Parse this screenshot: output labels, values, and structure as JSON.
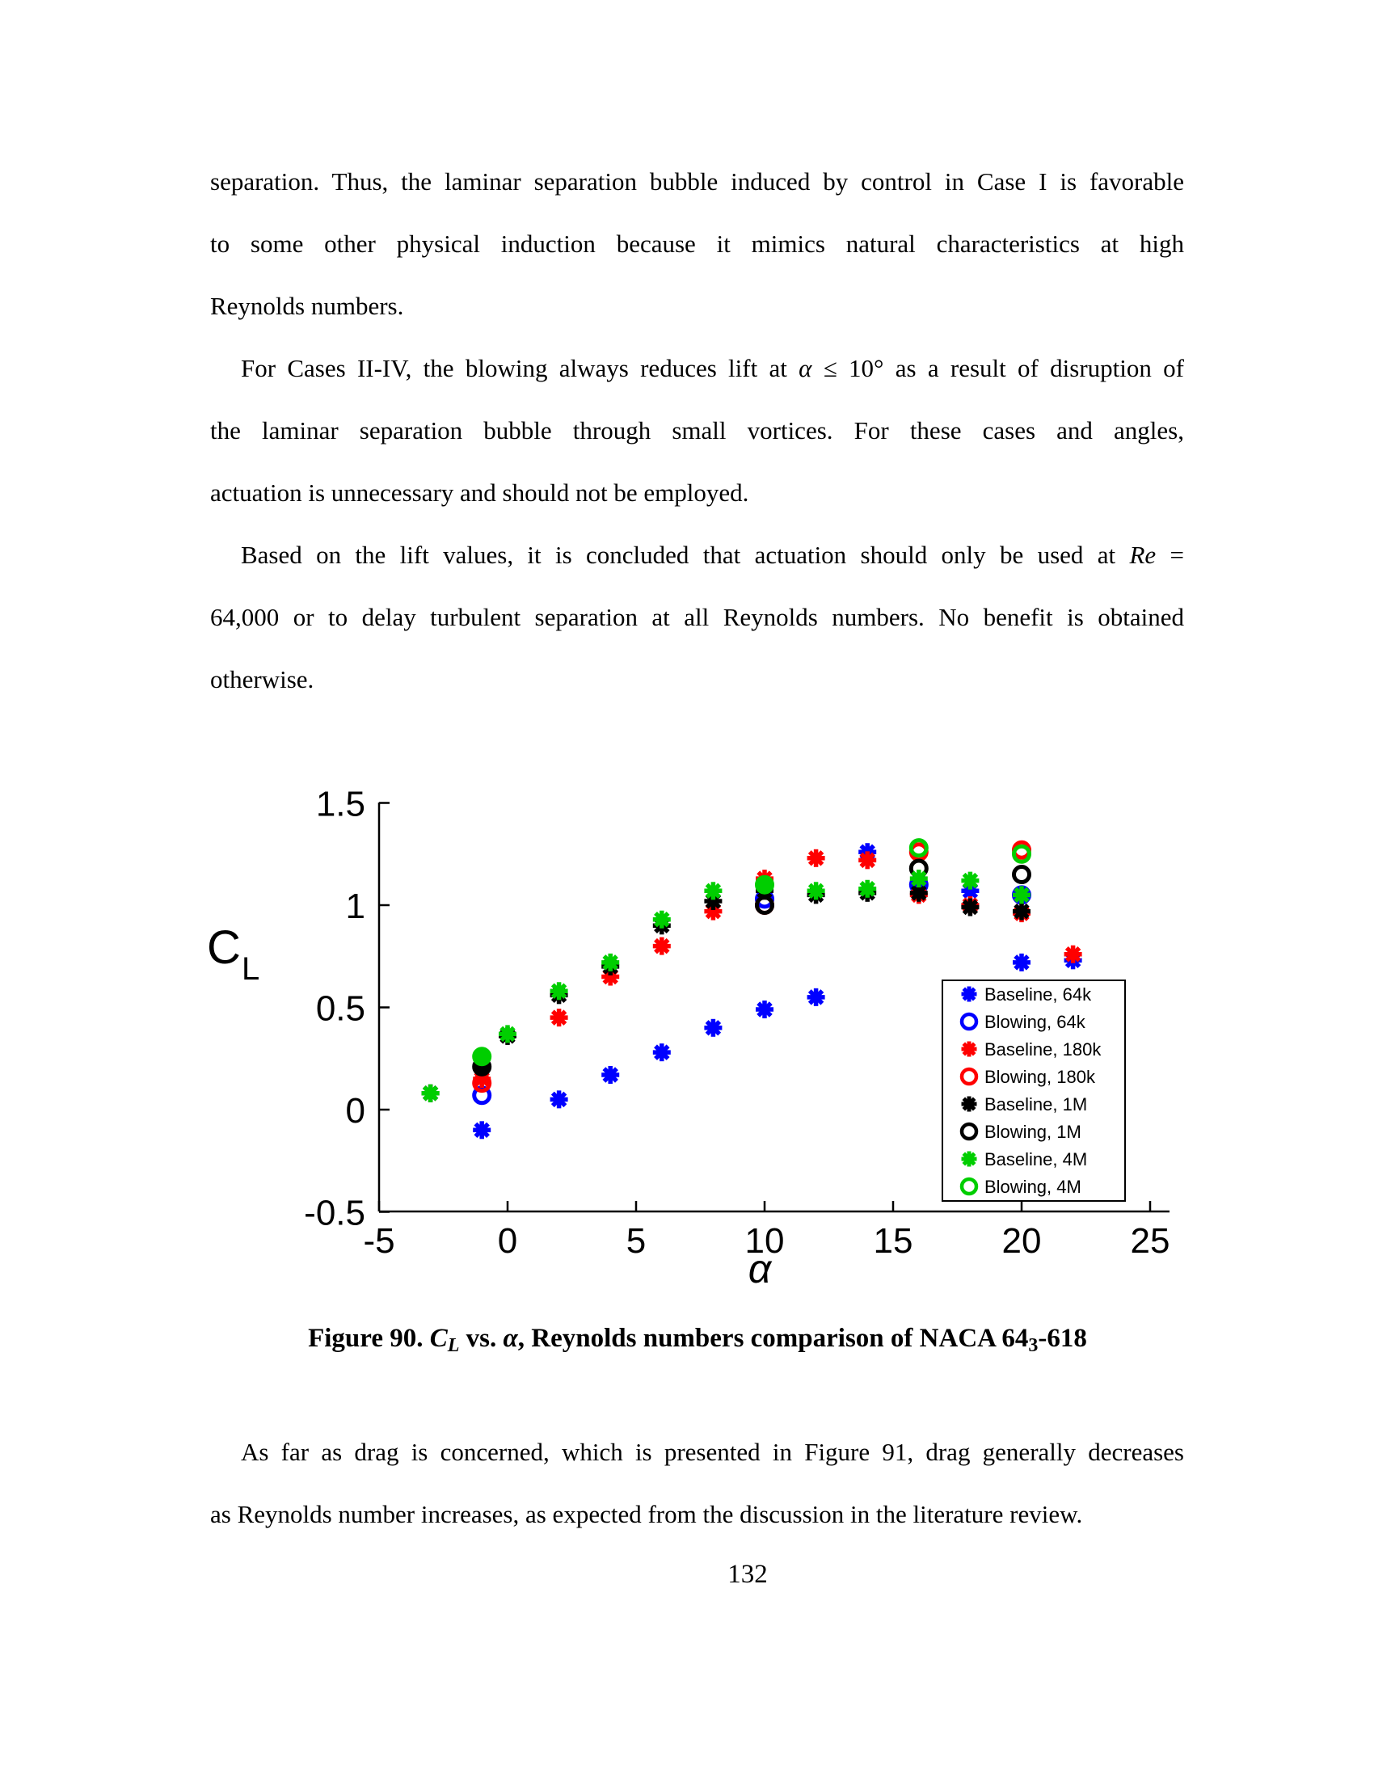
{
  "doc": {
    "p1l1": "separation.  Thus, the laminar separation bubble induced by control in Case I is favorable",
    "p1l2": "to some other physical induction because it mimics natural characteristics at high",
    "p1l3": "Reynolds numbers.",
    "p2l1a": "For Cases II-IV, the blowing always reduces lift at ",
    "p2l1b": "α",
    "p2l1c": " ≤ 10° as a result of disruption of",
    "p2l2": "the laminar separation bubble through small vortices.  For these cases and angles,",
    "p2l3": "actuation is unnecessary and should not be employed.",
    "p3l1a": "Based on the lift values, it is concluded that actuation should only be used at ",
    "p3l1b": "Re",
    "p3l1c": " =",
    "p3l2": "64,000 or to delay turbulent separation at all Reynolds numbers.  No benefit is obtained",
    "p3l3": "otherwise.",
    "p4l1": "As far as drag is concerned, which is presented in Figure 91, drag generally decreases",
    "p4l2": "as Reynolds number increases, as expected from the discussion in the literature review."
  },
  "caption": {
    "prefix": "Figure 90. ",
    "cl_main": "C",
    "cl_sub": "L",
    "mid": " vs. ",
    "alpha": "α",
    "tail_a": ", Reynolds numbers comparison of NACA 64",
    "tail_sub": "3",
    "tail_b": "-618"
  },
  "page": {
    "number": "132"
  },
  "chart_data": {
    "type": "scatter",
    "title": "",
    "xlabel": "α",
    "ylabel_main": "C",
    "ylabel_sub": "L",
    "xlim": [
      -5,
      25
    ],
    "ylim": [
      -0.5,
      1.5
    ],
    "xticks": [
      -5,
      0,
      5,
      10,
      15,
      20,
      25
    ],
    "yticks": [
      -0.5,
      0,
      0.5,
      1,
      1.5
    ],
    "grid": false,
    "legend_position": "lower-right-inside",
    "axis_color": "#000000",
    "series": [
      {
        "name": "Baseline, 64k",
        "marker": "star",
        "color": "#0000FF",
        "points": [
          [
            -1,
            -0.1
          ],
          [
            2,
            0.05
          ],
          [
            4,
            0.17
          ],
          [
            6,
            0.28
          ],
          [
            8,
            0.4
          ],
          [
            10,
            0.49
          ],
          [
            12,
            0.55
          ],
          [
            14,
            1.26
          ],
          [
            16,
            1.11
          ],
          [
            18,
            1.07
          ],
          [
            20,
            0.72
          ],
          [
            22,
            0.73
          ]
        ]
      },
      {
        "name": "Blowing, 64k",
        "marker": "circle",
        "color": "#0000FF",
        "points": [
          [
            -1,
            0.07
          ],
          [
            10,
            1.03
          ],
          [
            16,
            1.1
          ],
          [
            20,
            1.05
          ]
        ]
      },
      {
        "name": "Baseline, 180k",
        "marker": "star",
        "color": "#FF0000",
        "points": [
          [
            -1,
            0.15
          ],
          [
            2,
            0.45
          ],
          [
            4,
            0.65
          ],
          [
            6,
            0.8
          ],
          [
            8,
            0.97
          ],
          [
            10,
            1.13
          ],
          [
            12,
            1.23
          ],
          [
            14,
            1.22
          ],
          [
            16,
            1.05
          ],
          [
            18,
            1.0
          ],
          [
            20,
            0.96
          ],
          [
            22,
            0.76
          ]
        ]
      },
      {
        "name": "Blowing, 180k",
        "marker": "circle",
        "color": "#FF0000",
        "points": [
          [
            -1,
            0.13
          ],
          [
            10,
            1.0
          ],
          [
            16,
            1.26
          ],
          [
            20,
            1.27
          ]
        ]
      },
      {
        "name": "Baseline, 1M",
        "marker": "star",
        "color": "#000000",
        "points": [
          [
            -3,
            0.08
          ],
          [
            -1,
            0.21
          ],
          [
            0,
            0.36
          ],
          [
            2,
            0.56
          ],
          [
            4,
            0.7
          ],
          [
            6,
            0.9
          ],
          [
            8,
            1.02
          ],
          [
            10,
            1.07
          ],
          [
            12,
            1.05
          ],
          [
            14,
            1.06
          ],
          [
            16,
            1.06
          ],
          [
            18,
            0.99
          ],
          [
            20,
            0.97
          ]
        ]
      },
      {
        "name": "Blowing, 1M",
        "marker": "circle",
        "color": "#000000",
        "points": [
          [
            -1,
            0.21
          ],
          [
            10,
            1.0
          ],
          [
            16,
            1.18
          ],
          [
            20,
            1.15
          ]
        ]
      },
      {
        "name": "Baseline, 4M",
        "marker": "star",
        "color": "#00CE00",
        "points": [
          [
            -3,
            0.08
          ],
          [
            -1,
            0.26
          ],
          [
            0,
            0.37
          ],
          [
            2,
            0.58
          ],
          [
            4,
            0.72
          ],
          [
            6,
            0.93
          ],
          [
            8,
            1.07
          ],
          [
            10,
            1.1
          ],
          [
            12,
            1.07
          ],
          [
            14,
            1.08
          ],
          [
            16,
            1.13
          ],
          [
            18,
            1.12
          ],
          [
            20,
            1.05
          ]
        ]
      },
      {
        "name": "Blowing, 4M",
        "marker": "circle",
        "color": "#00CE00",
        "points": [
          [
            -1,
            0.26
          ],
          [
            10,
            1.1
          ],
          [
            16,
            1.28
          ],
          [
            20,
            1.25
          ]
        ]
      }
    ]
  }
}
